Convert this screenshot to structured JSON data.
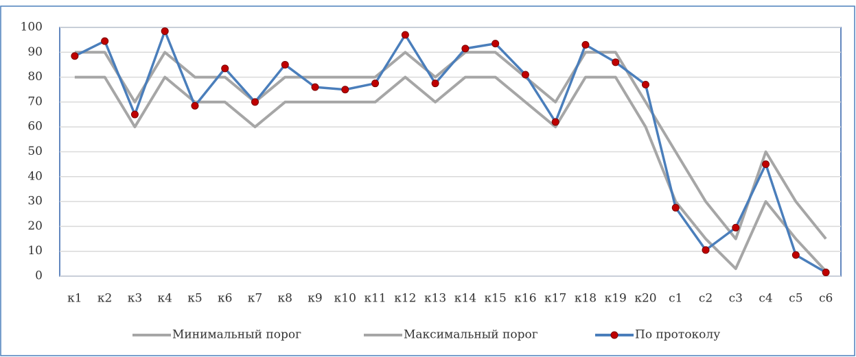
{
  "chart_data": {
    "type": "line",
    "categories": [
      "к1",
      "к2",
      "к3",
      "к4",
      "к5",
      "к6",
      "к7",
      "к8",
      "к9",
      "к10",
      "к11",
      "к12",
      "к13",
      "к14",
      "к15",
      "к16",
      "к17",
      "к18",
      "к19",
      "к20",
      "с1",
      "с2",
      "с3",
      "с4",
      "с5",
      "с6"
    ],
    "series": [
      {
        "name": "Минимальный порог",
        "color": "#a6a6a6",
        "values": [
          80,
          80,
          60,
          80,
          70,
          70,
          60,
          70,
          70,
          70,
          70,
          80,
          70,
          80,
          80,
          70,
          60,
          80,
          80,
          60,
          30,
          15,
          3,
          30,
          15,
          2
        ]
      },
      {
        "name": "Максимальный порог",
        "color": "#a6a6a6",
        "values": [
          90,
          90,
          70,
          90,
          80,
          80,
          70,
          80,
          80,
          80,
          80,
          90,
          80,
          90,
          90,
          80,
          70,
          90,
          90,
          70,
          50,
          30,
          15,
          50,
          30,
          15
        ]
      },
      {
        "name": "По протоколу",
        "color": "#4a7ebb",
        "marker_color": "#c00000",
        "values": [
          88.5,
          94.5,
          65,
          98.5,
          68.5,
          83.5,
          70,
          85,
          76,
          75,
          77.5,
          97,
          77.5,
          91.5,
          93.5,
          81,
          62,
          93,
          86,
          77,
          27.5,
          10.5,
          19.5,
          45,
          8.5,
          1.5
        ]
      }
    ],
    "ylim": [
      0,
      100
    ],
    "yticks": [
      0,
      10,
      20,
      30,
      40,
      50,
      60,
      70,
      80,
      90,
      100
    ],
    "grid": true,
    "legend": "bottom"
  }
}
